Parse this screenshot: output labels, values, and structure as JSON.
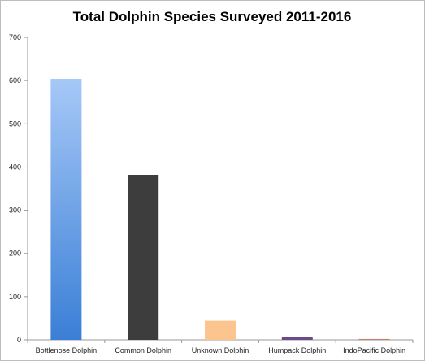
{
  "chart_data": {
    "type": "bar",
    "title": "Total Dolphin Species Surveyed 2011-2016",
    "categories": [
      "Bottlenose Dolphin",
      "Common Dolphin",
      "Unknown Dolphin",
      "Humpack Dolphin",
      "IndoPacific Dolphin"
    ],
    "values": [
      604,
      382,
      44,
      6,
      2
    ],
    "colors": [
      "#6fa3e8",
      "#3d3d3d",
      "#fcc590",
      "#6a4a8a",
      "#c08070"
    ],
    "ylim": [
      0,
      700
    ],
    "yticks": [
      0,
      100,
      200,
      300,
      400,
      500,
      600,
      700
    ],
    "xlabel": "",
    "ylabel": "",
    "grid": false
  }
}
